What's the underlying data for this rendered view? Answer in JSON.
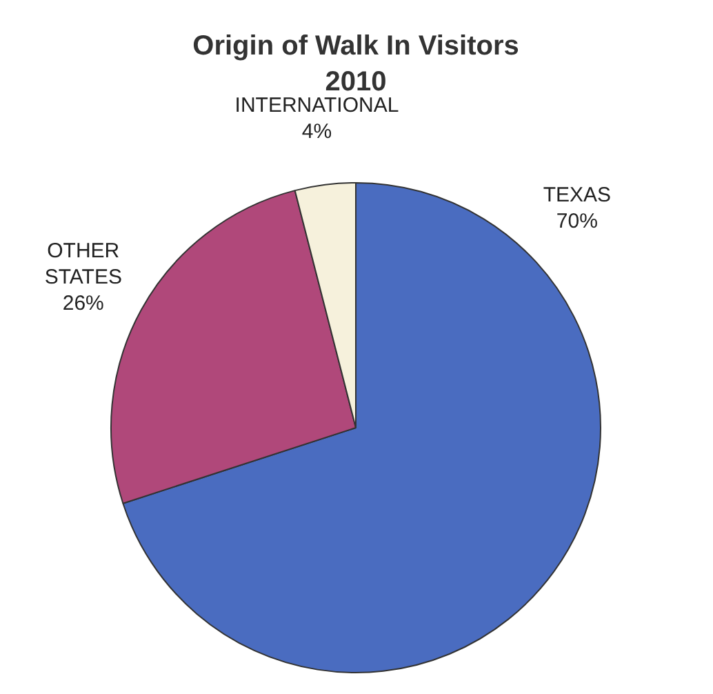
{
  "chart_data": {
    "type": "pie",
    "title": "Origin of Walk In Visitors",
    "subtitle": "2010",
    "categories": [
      "TEXAS",
      "OTHER STATES",
      "INTERNATIONAL"
    ],
    "values": [
      70,
      26,
      4
    ],
    "colors": [
      "#4a6cc0",
      "#b0487a",
      "#f6f1dc"
    ],
    "value_labels": [
      "70%",
      "26%",
      "4%"
    ],
    "legend": false
  }
}
